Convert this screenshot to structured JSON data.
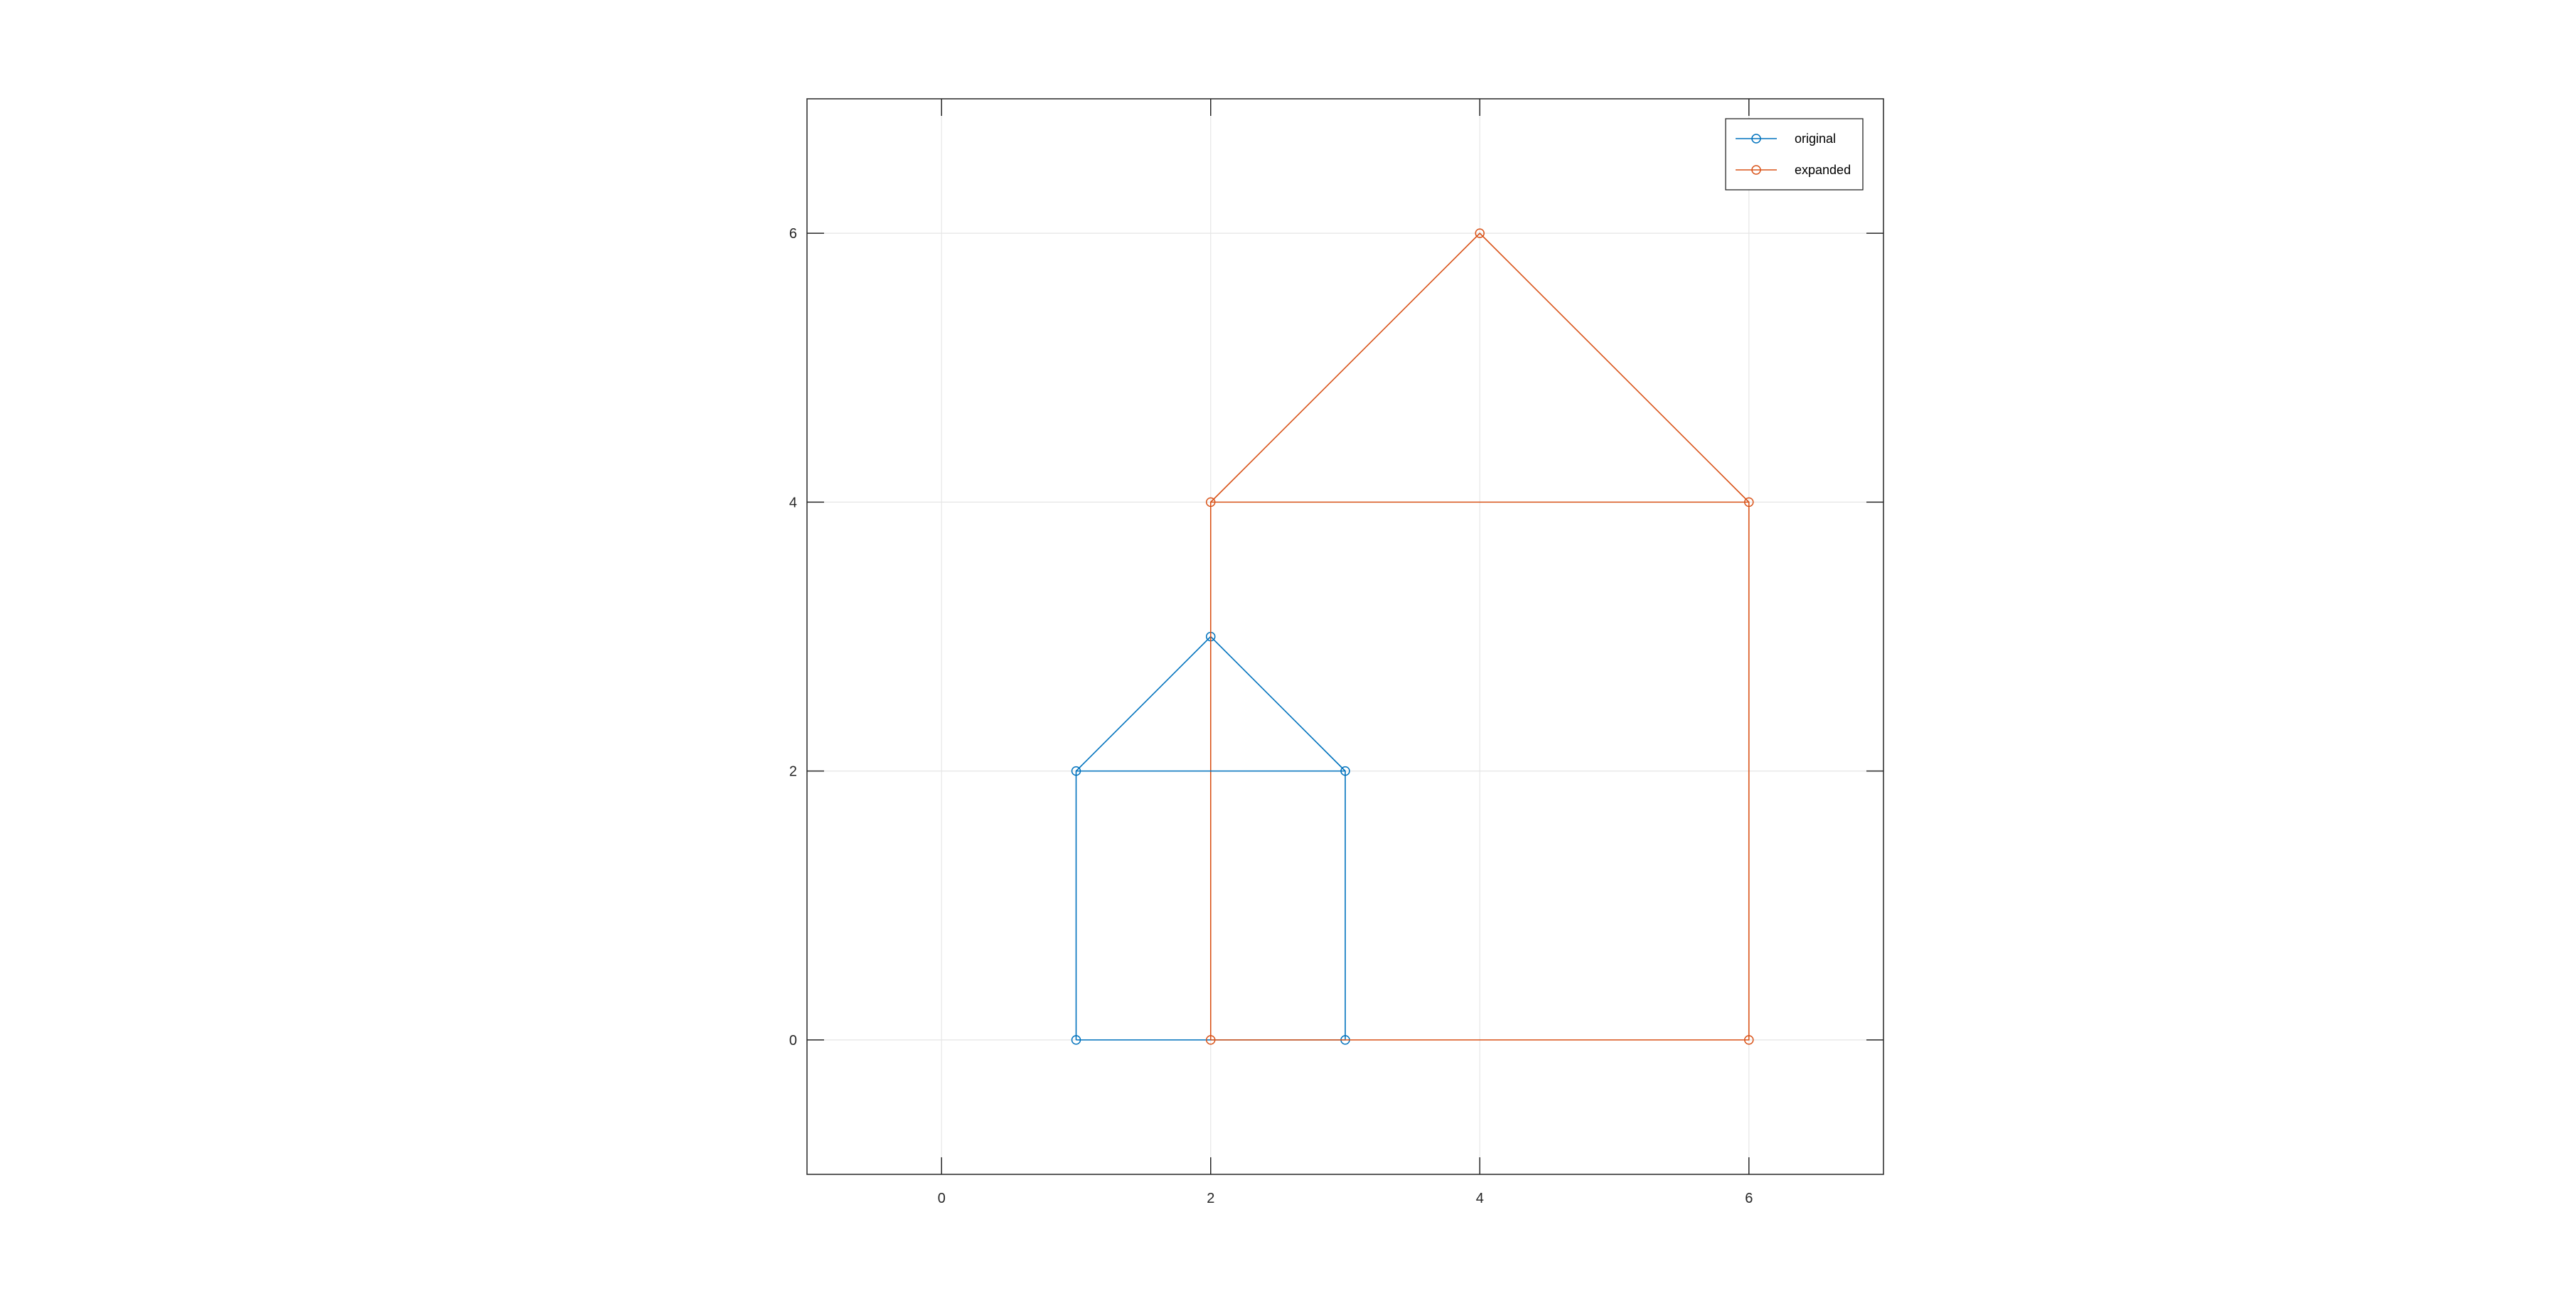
{
  "chart_data": {
    "type": "line",
    "title": "",
    "xlabel": "",
    "ylabel": "",
    "xlim": [
      -1,
      7
    ],
    "ylim": [
      -1,
      7
    ],
    "xticks": [
      0,
      2,
      4,
      6
    ],
    "yticks": [
      0,
      2,
      4,
      6
    ],
    "xtick_labels": [
      "0",
      "2",
      "4",
      "6"
    ],
    "ytick_labels": [
      "0",
      "2",
      "4",
      "6"
    ],
    "grid": true,
    "aspect": "equal",
    "legend": {
      "placement": "top-right",
      "entries": [
        "original",
        "expanded"
      ]
    },
    "series": [
      {
        "name": "original",
        "color": "#0072BD",
        "marker": "circle",
        "x": [
          1,
          3,
          3,
          2,
          1,
          1
        ],
        "y": [
          0,
          0,
          2,
          3,
          2,
          0
        ]
      },
      {
        "name": "expanded",
        "color": "#D95319",
        "marker": "circle",
        "x": [
          2,
          6,
          6,
          4,
          2,
          2
        ],
        "y": [
          0,
          0,
          4,
          6,
          4,
          0
        ]
      }
    ],
    "segments_extra": [
      {
        "series": "original",
        "x": [
          1,
          3
        ],
        "y": [
          2,
          2
        ]
      },
      {
        "series": "expanded",
        "x": [
          2,
          6
        ],
        "y": [
          4,
          4
        ]
      }
    ]
  }
}
